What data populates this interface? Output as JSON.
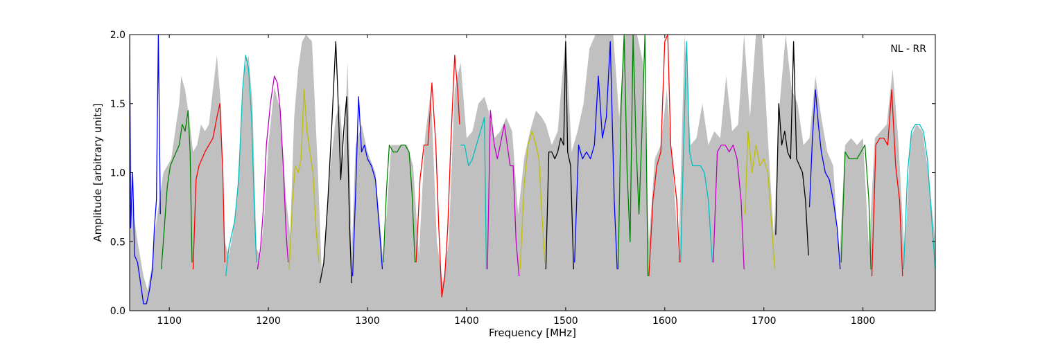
{
  "chart_data": {
    "type": "line",
    "title": "",
    "annotation": "NL - RR",
    "xlabel": "Frequency [MHz]",
    "ylabel": "Amplitude [arbitrary units]",
    "xlim": [
      1060,
      1873
    ],
    "ylim": [
      0.0,
      2.0
    ],
    "xticks": [
      1100,
      1200,
      1300,
      1400,
      1500,
      1600,
      1700,
      1800
    ],
    "yticks": [
      0.0,
      0.5,
      1.0,
      1.5,
      2.0
    ],
    "ytick_labels": [
      "0.0",
      "0.5",
      "1.0",
      "1.5",
      "2.0"
    ],
    "grid": false,
    "background_color": "#c0c0c0",
    "background_envelope": [
      [
        1060,
        2.0
      ],
      [
        1062,
        0.8
      ],
      [
        1068,
        0.5
      ],
      [
        1074,
        0.25
      ],
      [
        1078,
        0.15
      ],
      [
        1082,
        0.3
      ],
      [
        1086,
        0.6
      ],
      [
        1090,
        0.8
      ],
      [
        1094,
        1.0
      ],
      [
        1098,
        1.05
      ],
      [
        1102,
        1.1
      ],
      [
        1106,
        1.3
      ],
      [
        1110,
        1.5
      ],
      [
        1112,
        1.7
      ],
      [
        1116,
        1.6
      ],
      [
        1120,
        1.4
      ],
      [
        1124,
        1.15
      ],
      [
        1128,
        1.2
      ],
      [
        1132,
        1.35
      ],
      [
        1136,
        1.3
      ],
      [
        1140,
        1.35
      ],
      [
        1144,
        1.6
      ],
      [
        1148,
        1.85
      ],
      [
        1152,
        1.5
      ],
      [
        1156,
        0.5
      ],
      [
        1160,
        0.4
      ],
      [
        1164,
        0.55
      ],
      [
        1168,
        0.8
      ],
      [
        1172,
        1.3
      ],
      [
        1176,
        1.75
      ],
      [
        1180,
        1.85
      ],
      [
        1184,
        1.5
      ],
      [
        1188,
        0.45
      ],
      [
        1192,
        0.4
      ],
      [
        1196,
        0.7
      ],
      [
        1200,
        1.2
      ],
      [
        1206,
        1.62
      ],
      [
        1212,
        1.45
      ],
      [
        1218,
        0.8
      ],
      [
        1222,
        0.55
      ],
      [
        1226,
        1.4
      ],
      [
        1230,
        1.75
      ],
      [
        1234,
        1.95
      ],
      [
        1238,
        2.0
      ],
      [
        1244,
        1.95
      ],
      [
        1250,
        1.0
      ],
      [
        1254,
        0.25
      ],
      [
        1262,
        1.0
      ],
      [
        1268,
        1.4
      ],
      [
        1272,
        1.5
      ],
      [
        1276,
        1.1
      ],
      [
        1280,
        1.8
      ],
      [
        1284,
        0.4
      ],
      [
        1288,
        1.2
      ],
      [
        1294,
        1.35
      ],
      [
        1300,
        1.15
      ],
      [
        1308,
        1.0
      ],
      [
        1316,
        0.35
      ],
      [
        1324,
        1.2
      ],
      [
        1332,
        1.2
      ],
      [
        1340,
        1.2
      ],
      [
        1346,
        1.05
      ],
      [
        1352,
        0.4
      ],
      [
        1358,
        1.25
      ],
      [
        1364,
        1.6
      ],
      [
        1370,
        0.5
      ],
      [
        1376,
        0.2
      ],
      [
        1382,
        0.5
      ],
      [
        1388,
        1.6
      ],
      [
        1394,
        1.8
      ],
      [
        1400,
        1.25
      ],
      [
        1406,
        1.3
      ],
      [
        1412,
        1.5
      ],
      [
        1418,
        1.55
      ],
      [
        1422,
        1.45
      ],
      [
        1428,
        1.25
      ],
      [
        1434,
        1.3
      ],
      [
        1440,
        1.4
      ],
      [
        1446,
        1.3
      ],
      [
        1452,
        0.7
      ],
      [
        1458,
        1.1
      ],
      [
        1464,
        1.3
      ],
      [
        1470,
        1.45
      ],
      [
        1476,
        1.4
      ],
      [
        1480,
        1.35
      ],
      [
        1486,
        1.2
      ],
      [
        1492,
        1.3
      ],
      [
        1500,
        2.0
      ],
      [
        1506,
        1.15
      ],
      [
        1512,
        1.3
      ],
      [
        1518,
        1.5
      ],
      [
        1524,
        1.9
      ],
      [
        1530,
        2.0
      ],
      [
        1536,
        2.0
      ],
      [
        1542,
        2.0
      ],
      [
        1548,
        2.0
      ],
      [
        1554,
        1.4
      ],
      [
        1560,
        2.0
      ],
      [
        1566,
        2.0
      ],
      [
        1572,
        2.0
      ],
      [
        1578,
        1.8
      ],
      [
        1584,
        0.5
      ],
      [
        1590,
        1.1
      ],
      [
        1596,
        1.2
      ],
      [
        1602,
        1.6
      ],
      [
        1608,
        1.05
      ],
      [
        1614,
        0.4
      ],
      [
        1620,
        2.0
      ],
      [
        1626,
        1.2
      ],
      [
        1632,
        1.25
      ],
      [
        1638,
        1.5
      ],
      [
        1644,
        1.2
      ],
      [
        1650,
        1.3
      ],
      [
        1656,
        1.25
      ],
      [
        1662,
        1.7
      ],
      [
        1668,
        1.3
      ],
      [
        1674,
        1.35
      ],
      [
        1680,
        2.0
      ],
      [
        1686,
        1.4
      ],
      [
        1692,
        2.0
      ],
      [
        1698,
        2.0
      ],
      [
        1704,
        1.25
      ],
      [
        1710,
        0.55
      ],
      [
        1716,
        1.5
      ],
      [
        1722,
        2.0
      ],
      [
        1728,
        1.6
      ],
      [
        1734,
        1.5
      ],
      [
        1740,
        1.2
      ],
      [
        1746,
        1.25
      ],
      [
        1752,
        1.7
      ],
      [
        1758,
        1.4
      ],
      [
        1764,
        1.15
      ],
      [
        1770,
        1.05
      ],
      [
        1776,
        0.35
      ],
      [
        1782,
        1.2
      ],
      [
        1788,
        1.25
      ],
      [
        1794,
        1.2
      ],
      [
        1800,
        1.25
      ],
      [
        1806,
        0.45
      ],
      [
        1812,
        1.25
      ],
      [
        1818,
        1.3
      ],
      [
        1824,
        1.35
      ],
      [
        1830,
        1.75
      ],
      [
        1836,
        1.2
      ],
      [
        1842,
        0.4
      ],
      [
        1848,
        1.25
      ],
      [
        1854,
        1.35
      ],
      [
        1860,
        1.3
      ],
      [
        1866,
        1.0
      ],
      [
        1873,
        0.5
      ]
    ],
    "series": [
      {
        "color": "#0000ff",
        "x": [
          1060,
          1061,
          1063,
          1065,
          1068,
          1071,
          1074,
          1077,
          1080,
          1083,
          1085,
          1087,
          1089,
          1091
        ],
        "y": [
          2.0,
          0.6,
          1.0,
          0.4,
          0.35,
          0.2,
          0.05,
          0.05,
          0.15,
          0.3,
          0.6,
          0.8,
          2.0,
          0.7
        ]
      },
      {
        "color": "#008000",
        "x": [
          1092,
          1095,
          1098,
          1101,
          1104,
          1107,
          1110,
          1113,
          1116,
          1119,
          1121,
          1123
        ],
        "y": [
          0.3,
          0.6,
          0.9,
          1.05,
          1.1,
          1.15,
          1.2,
          1.35,
          1.3,
          1.45,
          1.15,
          0.35
        ]
      },
      {
        "color": "#ff0000",
        "x": [
          1124,
          1127,
          1130,
          1133,
          1136,
          1140,
          1144,
          1148,
          1151,
          1154,
          1156
        ],
        "y": [
          0.3,
          0.95,
          1.05,
          1.1,
          1.15,
          1.2,
          1.25,
          1.4,
          1.5,
          1.0,
          0.35
        ]
      },
      {
        "color": "#00bfbf",
        "x": [
          1157,
          1160,
          1163,
          1166,
          1170,
          1174,
          1177,
          1180,
          1183,
          1186,
          1188
        ],
        "y": [
          0.25,
          0.45,
          0.55,
          0.65,
          0.95,
          1.6,
          1.85,
          1.75,
          1.4,
          0.7,
          0.35
        ]
      },
      {
        "color": "#bf00bf",
        "x": [
          1189,
          1192,
          1195,
          1198,
          1202,
          1206,
          1209,
          1212,
          1215,
          1218,
          1220
        ],
        "y": [
          0.3,
          0.45,
          0.75,
          1.2,
          1.5,
          1.7,
          1.65,
          1.45,
          1.05,
          0.55,
          0.35
        ]
      },
      {
        "color": "#bfbf00",
        "x": [
          1221,
          1224,
          1227,
          1230,
          1233,
          1236,
          1239,
          1242,
          1245,
          1248,
          1251
        ],
        "y": [
          0.3,
          0.75,
          1.05,
          1.0,
          1.1,
          1.6,
          1.3,
          1.15,
          1.0,
          0.6,
          0.35
        ]
      },
      {
        "color": "#000000",
        "x": [
          1252,
          1256,
          1260,
          1264,
          1268,
          1270,
          1273,
          1276,
          1279,
          1282,
          1284
        ],
        "y": [
          0.2,
          0.35,
          0.8,
          1.35,
          1.95,
          1.6,
          0.95,
          1.3,
          1.55,
          0.6,
          0.2
        ]
      },
      {
        "color": "#0000ff",
        "x": [
          1285,
          1288,
          1291,
          1294,
          1297,
          1300,
          1304,
          1308,
          1312,
          1315
        ],
        "y": [
          0.25,
          0.85,
          1.55,
          1.15,
          1.2,
          1.1,
          1.05,
          0.95,
          0.6,
          0.3
        ]
      },
      {
        "color": "#008000",
        "x": [
          1316,
          1319,
          1322,
          1326,
          1330,
          1334,
          1338,
          1342,
          1345,
          1348
        ],
        "y": [
          0.35,
          0.85,
          1.2,
          1.15,
          1.15,
          1.2,
          1.2,
          1.15,
          0.85,
          0.35
        ]
      },
      {
        "color": "#ff0000",
        "x": [
          1349,
          1353,
          1357,
          1361,
          1365,
          1369,
          1372,
          1375,
          1378,
          1381,
          1384,
          1388,
          1391,
          1393
        ],
        "y": [
          0.35,
          0.95,
          1.2,
          1.2,
          1.65,
          1.2,
          0.6,
          0.1,
          0.25,
          0.6,
          1.2,
          1.85,
          1.6,
          1.35
        ]
      },
      {
        "color": "#00bfbf",
        "x": [
          1394,
          1398,
          1402,
          1406,
          1410,
          1414,
          1418,
          1420
        ],
        "y": [
          1.2,
          1.2,
          1.05,
          1.1,
          1.2,
          1.3,
          1.4,
          0.3
        ]
      },
      {
        "color": "#bf00bf",
        "x": [
          1421,
          1424,
          1428,
          1431,
          1434,
          1438,
          1441,
          1444,
          1447,
          1450,
          1453
        ],
        "y": [
          0.3,
          1.45,
          1.2,
          1.1,
          1.2,
          1.35,
          1.2,
          1.05,
          1.05,
          0.5,
          0.25
        ]
      },
      {
        "color": "#bfbf00",
        "x": [
          1454,
          1458,
          1462,
          1466,
          1470,
          1473,
          1476,
          1479
        ],
        "y": [
          0.3,
          0.9,
          1.2,
          1.3,
          1.2,
          1.1,
          0.7,
          0.35
        ]
      },
      {
        "color": "#000000",
        "x": [
          1480,
          1483,
          1486,
          1489,
          1492,
          1495,
          1498,
          1500,
          1502,
          1505,
          1508
        ],
        "y": [
          0.3,
          1.15,
          1.15,
          1.1,
          1.15,
          1.25,
          1.2,
          1.95,
          1.15,
          1.05,
          0.3
        ]
      },
      {
        "color": "#0000ff",
        "x": [
          1509,
          1513,
          1517,
          1521,
          1525,
          1529,
          1533,
          1537,
          1541,
          1545,
          1549,
          1552
        ],
        "y": [
          0.35,
          1.2,
          1.1,
          1.15,
          1.1,
          1.2,
          1.7,
          1.25,
          1.4,
          1.95,
          0.8,
          0.3
        ]
      },
      {
        "color": "#008000",
        "x": [
          1553,
          1556,
          1559,
          1562,
          1565,
          1568,
          1571,
          1574,
          1577,
          1580,
          1583
        ],
        "y": [
          0.3,
          1.5,
          2.0,
          1.0,
          0.5,
          2.0,
          1.2,
          0.7,
          1.3,
          2.0,
          0.25
        ]
      },
      {
        "color": "#ff0000",
        "x": [
          1584,
          1588,
          1592,
          1596,
          1600,
          1603,
          1606,
          1609,
          1612,
          1615
        ],
        "y": [
          0.25,
          0.8,
          1.05,
          1.15,
          1.95,
          2.0,
          1.2,
          1.0,
          0.8,
          0.35
        ]
      },
      {
        "color": "#00bfbf",
        "x": [
          1616,
          1619,
          1622,
          1625,
          1628,
          1632,
          1636,
          1640,
          1644,
          1648
        ],
        "y": [
          0.35,
          1.2,
          1.95,
          1.15,
          1.05,
          1.05,
          1.05,
          1.0,
          0.8,
          0.35
        ]
      },
      {
        "color": "#bf00bf",
        "x": [
          1649,
          1653,
          1657,
          1661,
          1665,
          1669,
          1673,
          1677,
          1680
        ],
        "y": [
          0.35,
          1.15,
          1.2,
          1.2,
          1.15,
          1.2,
          1.1,
          0.8,
          0.3
        ]
      },
      {
        "color": "#bfbf00",
        "x": [
          1681,
          1684,
          1688,
          1692,
          1696,
          1700,
          1704,
          1708,
          1711
        ],
        "y": [
          0.7,
          1.3,
          1.0,
          1.2,
          1.05,
          1.1,
          1.0,
          0.6,
          0.3
        ]
      },
      {
        "color": "#000000",
        "x": [
          1712,
          1715,
          1718,
          1721,
          1724,
          1727,
          1730,
          1733,
          1736,
          1739,
          1742,
          1745
        ],
        "y": [
          0.55,
          1.5,
          1.2,
          1.3,
          1.15,
          1.1,
          1.95,
          1.1,
          1.05,
          1.0,
          0.8,
          0.4
        ]
      },
      {
        "color": "#0000ff",
        "x": [
          1746,
          1749,
          1752,
          1755,
          1758,
          1762,
          1766,
          1770,
          1774,
          1777
        ],
        "y": [
          0.75,
          1.25,
          1.6,
          1.35,
          1.15,
          1.0,
          0.95,
          0.8,
          0.6,
          0.3
        ]
      },
      {
        "color": "#008000",
        "x": [
          1778,
          1782,
          1786,
          1790,
          1794,
          1798,
          1802,
          1806,
          1808
        ],
        "y": [
          0.35,
          1.15,
          1.1,
          1.1,
          1.1,
          1.15,
          1.2,
          0.8,
          0.3
        ]
      },
      {
        "color": "#ff0000",
        "x": [
          1809,
          1813,
          1817,
          1821,
          1825,
          1829,
          1833,
          1837,
          1840
        ],
        "y": [
          0.25,
          1.2,
          1.25,
          1.25,
          1.2,
          1.6,
          1.05,
          0.8,
          0.25
        ]
      },
      {
        "color": "#00bfbf",
        "x": [
          1841,
          1845,
          1849,
          1853,
          1857,
          1861,
          1865,
          1869,
          1873
        ],
        "y": [
          0.3,
          1.0,
          1.3,
          1.35,
          1.35,
          1.3,
          1.1,
          0.7,
          0.3
        ]
      }
    ]
  }
}
